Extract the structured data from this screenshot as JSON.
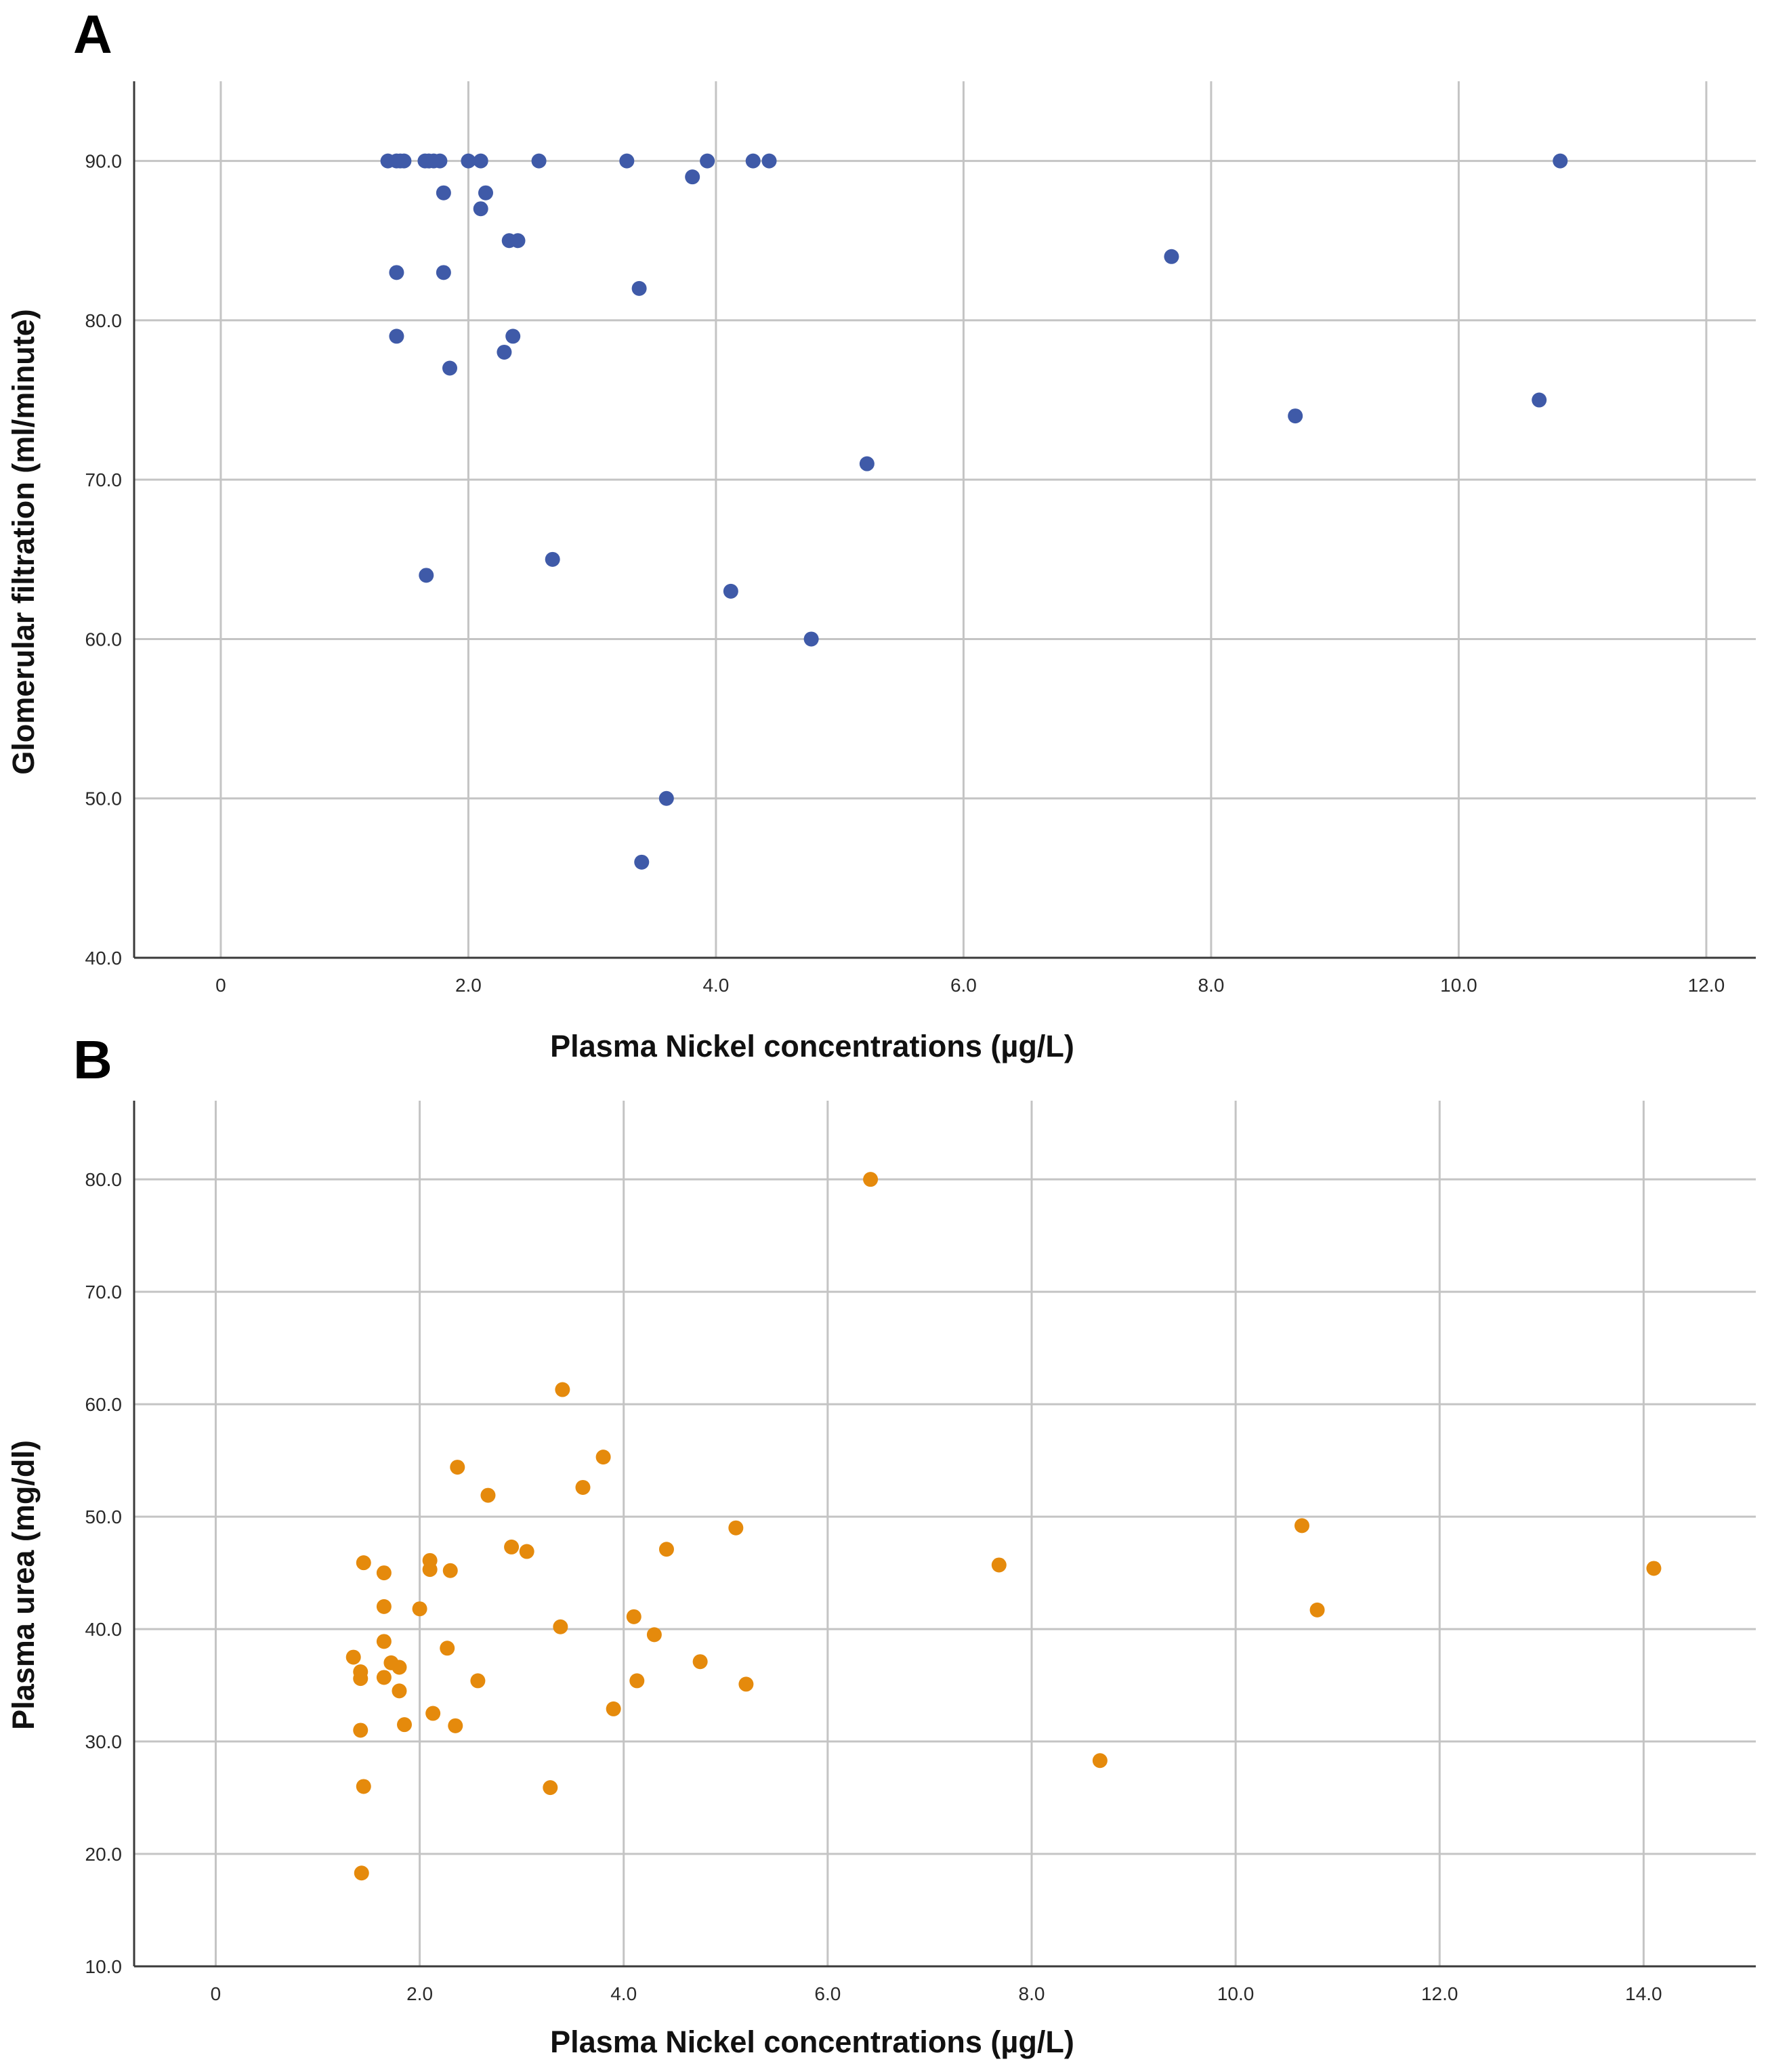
{
  "chart_data": [
    {
      "panel_label": "A",
      "type": "scatter",
      "title": "",
      "xlabel": "Plasma Nickel concentrations (µg/L)",
      "ylabel": "Glomerular filtration (ml/minute)",
      "xlim": [
        -0.7,
        12.4
      ],
      "ylim": [
        40,
        95
      ],
      "xticks": [
        0,
        2,
        4,
        6,
        8,
        10,
        12
      ],
      "xtick_labels": [
        "0",
        "2.0",
        "4.0",
        "6.0",
        "8.0",
        "10.0",
        "12.0"
      ],
      "yticks": [
        40,
        50,
        60,
        70,
        80,
        90
      ],
      "ytick_labels": [
        "40.0",
        "50.0",
        "60.0",
        "70.0",
        "80.0",
        "90.0"
      ],
      "grid": true,
      "point_color": "#3f5aa8",
      "points": [
        [
          1.35,
          90
        ],
        [
          1.42,
          90
        ],
        [
          1.45,
          90
        ],
        [
          1.48,
          90
        ],
        [
          1.65,
          90
        ],
        [
          1.68,
          90
        ],
        [
          1.72,
          90
        ],
        [
          1.77,
          90
        ],
        [
          2.0,
          90
        ],
        [
          2.1,
          90
        ],
        [
          2.57,
          90
        ],
        [
          3.28,
          90
        ],
        [
          3.93,
          90
        ],
        [
          4.3,
          90
        ],
        [
          4.43,
          90
        ],
        [
          10.82,
          90
        ],
        [
          3.81,
          89
        ],
        [
          1.8,
          88
        ],
        [
          2.14,
          88
        ],
        [
          2.1,
          87
        ],
        [
          2.33,
          85
        ],
        [
          2.4,
          85
        ],
        [
          7.68,
          84
        ],
        [
          1.42,
          83
        ],
        [
          1.8,
          83
        ],
        [
          3.38,
          82
        ],
        [
          1.42,
          79
        ],
        [
          2.36,
          79
        ],
        [
          2.29,
          78
        ],
        [
          1.85,
          77
        ],
        [
          10.65,
          75
        ],
        [
          8.68,
          74
        ],
        [
          5.22,
          71
        ],
        [
          2.68,
          65
        ],
        [
          1.66,
          64
        ],
        [
          4.12,
          63
        ],
        [
          4.77,
          60
        ],
        [
          3.6,
          50
        ],
        [
          3.4,
          46
        ]
      ]
    },
    {
      "panel_label": "B",
      "type": "scatter",
      "title": "",
      "xlabel": "Plasma Nickel concentrations (µg/L)",
      "ylabel": "Plasma urea (mg/dl)",
      "xlim": [
        -0.8,
        15.1
      ],
      "ylim": [
        10,
        87
      ],
      "xticks": [
        0,
        2,
        4,
        6,
        8,
        10,
        12,
        14
      ],
      "xtick_labels": [
        "0",
        "2.0",
        "4.0",
        "6.0",
        "8.0",
        "10.0",
        "12.0",
        "14.0"
      ],
      "yticks": [
        10,
        20,
        30,
        40,
        50,
        60,
        70,
        80
      ],
      "ytick_labels": [
        "10.0",
        "20.0",
        "30.0",
        "40.0",
        "50.0",
        "60.0",
        "70.0",
        "80.0"
      ],
      "grid": true,
      "point_color": "#e58a0c",
      "points": [
        [
          6.42,
          80.0
        ],
        [
          3.4,
          61.3
        ],
        [
          3.8,
          55.3
        ],
        [
          2.37,
          54.4
        ],
        [
          3.6,
          52.6
        ],
        [
          2.67,
          51.9
        ],
        [
          5.1,
          49.0
        ],
        [
          10.65,
          49.2
        ],
        [
          2.9,
          47.3
        ],
        [
          3.05,
          46.9
        ],
        [
          4.42,
          47.1
        ],
        [
          2.1,
          46.1
        ],
        [
          1.45,
          45.9
        ],
        [
          7.68,
          45.7
        ],
        [
          14.1,
          45.4
        ],
        [
          2.1,
          45.3
        ],
        [
          2.3,
          45.2
        ],
        [
          1.65,
          45.0
        ],
        [
          1.65,
          42.0
        ],
        [
          2.0,
          41.8
        ],
        [
          10.8,
          41.7
        ],
        [
          4.1,
          41.1
        ],
        [
          3.38,
          40.2
        ],
        [
          4.3,
          39.5
        ],
        [
          1.65,
          38.9
        ],
        [
          2.27,
          38.3
        ],
        [
          1.35,
          37.5
        ],
        [
          1.72,
          37.0
        ],
        [
          1.8,
          36.6
        ],
        [
          4.75,
          37.1
        ],
        [
          1.42,
          36.2
        ],
        [
          1.65,
          35.7
        ],
        [
          1.42,
          35.6
        ],
        [
          2.57,
          35.4
        ],
        [
          4.13,
          35.4
        ],
        [
          5.2,
          35.1
        ],
        [
          1.8,
          34.5
        ],
        [
          3.9,
          32.9
        ],
        [
          2.13,
          32.5
        ],
        [
          1.85,
          31.5
        ],
        [
          2.35,
          31.4
        ],
        [
          1.42,
          31.0
        ],
        [
          8.67,
          28.3
        ],
        [
          1.45,
          26.0
        ],
        [
          3.28,
          25.9
        ],
        [
          1.43,
          18.3
        ]
      ]
    }
  ]
}
